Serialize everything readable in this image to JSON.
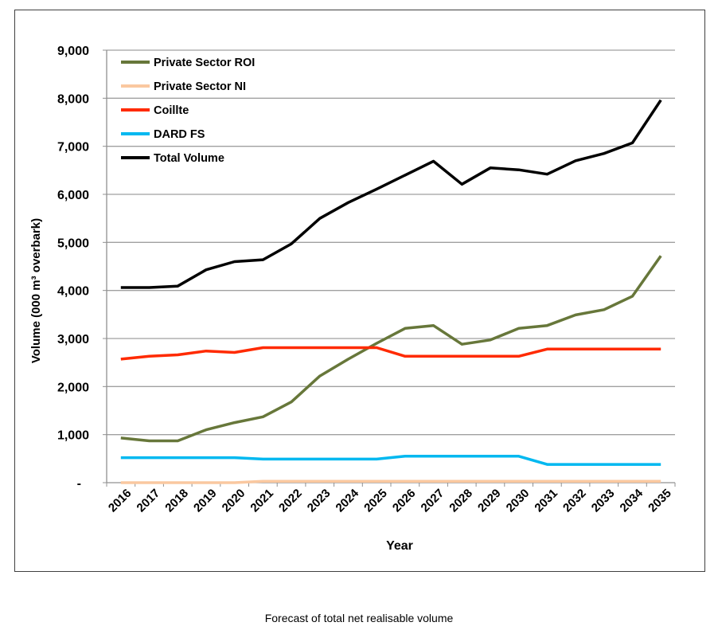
{
  "caption": "Forecast of total net realisable volume",
  "chart_data": {
    "type": "line",
    "title": "",
    "xlabel": "Year",
    "ylabel": "Volume (000 m³ overbark)",
    "ylim": [
      0,
      9000
    ],
    "yticks": [
      0,
      1000,
      2000,
      3000,
      4000,
      5000,
      6000,
      7000,
      8000,
      9000
    ],
    "ytick_labels": [
      "-",
      "1,000",
      "2,000",
      "3,000",
      "4,000",
      "5,000",
      "6,000",
      "7,000",
      "8,000",
      "9,000"
    ],
    "grid": true,
    "legend_position": "top-left",
    "categories": [
      "2016",
      "2017",
      "2018",
      "2019",
      "2020",
      "2021",
      "2022",
      "2023",
      "2024",
      "2025",
      "2026",
      "2027",
      "2028",
      "2029",
      "2030",
      "2031",
      "2032",
      "2033",
      "2034",
      "2035"
    ],
    "series": [
      {
        "name": "Private Sector ROI",
        "color": "#67773a",
        "values": [
          930,
          870,
          870,
          1100,
          1250,
          1370,
          1680,
          2220,
          2570,
          2900,
          3210,
          3270,
          2880,
          2970,
          3210,
          3270,
          3490,
          3600,
          3880,
          4720
        ]
      },
      {
        "name": "Private Sector NI",
        "color": "#fac8a0",
        "values": [
          0,
          0,
          0,
          0,
          0,
          30,
          30,
          30,
          30,
          30,
          30,
          30,
          30,
          30,
          30,
          30,
          30,
          30,
          30,
          30
        ]
      },
      {
        "name": "Coillte",
        "color": "#ff2a00",
        "values": [
          2570,
          2630,
          2660,
          2740,
          2710,
          2810,
          2810,
          2810,
          2810,
          2810,
          2630,
          2630,
          2630,
          2630,
          2630,
          2780,
          2780,
          2780,
          2780,
          2780
        ]
      },
      {
        "name": "DARD FS",
        "color": "#00b8f0",
        "values": [
          520,
          520,
          520,
          520,
          520,
          490,
          490,
          490,
          490,
          490,
          550,
          550,
          550,
          550,
          550,
          380,
          380,
          380,
          380,
          380
        ]
      },
      {
        "name": "Total Volume",
        "color": "#000000",
        "values": [
          4060,
          4060,
          4090,
          4430,
          4600,
          4640,
          4970,
          5500,
          5830,
          6110,
          6400,
          6690,
          6210,
          6550,
          6510,
          6420,
          6700,
          6850,
          7070,
          7960
        ]
      }
    ]
  }
}
